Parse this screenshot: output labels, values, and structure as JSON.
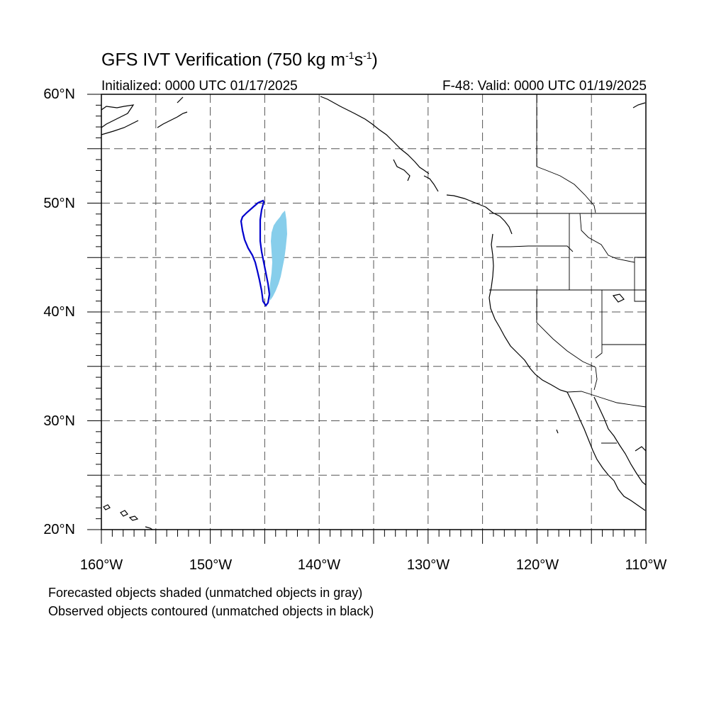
{
  "title": {
    "main": "GFS IVT Verification (750 kg m",
    "exp1": "-1",
    "mid": "s",
    "exp2": "-1",
    "close": ")"
  },
  "initialized": "Initialized: 0000 UTC 01/17/2025",
  "valid": "F-48: Valid: 0000 UTC 01/19/2025",
  "lat_labels": [
    "60°N",
    "50°N",
    "40°N",
    "30°N",
    "20°N"
  ],
  "lon_labels": [
    "160°W",
    "150°W",
    "140°W",
    "130°W",
    "120°W",
    "110°W"
  ],
  "notes": {
    "line1": "Forecasted objects shaded (unmatched objects in gray)",
    "line2": "Observed objects contoured (unmatched objects in black)"
  },
  "map": {
    "lon_range": [
      -160,
      -110
    ],
    "lat_range": [
      20,
      60
    ],
    "grid_interval_deg": 5,
    "forecast_object_color": "#87CEEB",
    "observed_contour_color": "#0000CD",
    "coastline_color": "#000000"
  }
}
